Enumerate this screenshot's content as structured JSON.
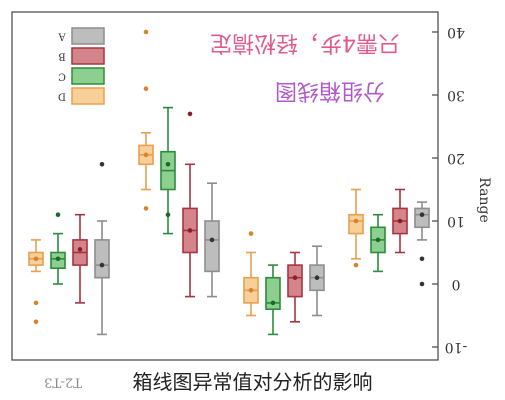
{
  "chart_data": {
    "type": "box",
    "ylabel": "Range",
    "ylim": [
      -11,
      41
    ],
    "yticks": [
      -10,
      0,
      10,
      20,
      30,
      40
    ],
    "grid": false,
    "legend_position": "top-left",
    "categories": [
      "T2-T3",
      "",
      "",
      ""
    ],
    "series": [
      {
        "name": "A",
        "color": "#8e8e8e",
        "fill": "#bdbdbd",
        "mark": "#333333"
      },
      {
        "name": "B",
        "color": "#a8343f",
        "fill": "#d4858c",
        "mark": "#8a1f2a"
      },
      {
        "name": "C",
        "color": "#2e8b3c",
        "fill": "#8ccf8f",
        "mark": "#1a6b2a"
      },
      {
        "name": "D",
        "color": "#e8a050",
        "fill": "#f7cf98",
        "mark": "#d9822b"
      }
    ],
    "boxes": [
      {
        "group": 0,
        "series": "D",
        "whisker_low": 2,
        "q1": 3,
        "median": 4,
        "q3": 5,
        "whisker_high": 7,
        "mean": 4,
        "outliers": [
          -3,
          -6
        ]
      },
      {
        "group": 0,
        "series": "C",
        "whisker_low": 0,
        "q1": 2.5,
        "median": 4,
        "q3": 5,
        "whisker_high": 8,
        "mean": 4,
        "outliers": [
          11
        ]
      },
      {
        "group": 0,
        "series": "B",
        "whisker_low": -3,
        "q1": 3,
        "median": 5,
        "q3": 7,
        "whisker_high": 11,
        "mean": 5.5,
        "outliers": []
      },
      {
        "group": 0,
        "series": "A",
        "whisker_low": -8,
        "q1": 1,
        "median": 3,
        "q3": 7,
        "whisker_high": 10,
        "mean": 3,
        "outliers": [
          19
        ]
      },
      {
        "group": 1,
        "series": "D",
        "whisker_low": 15,
        "q1": 19,
        "median": 20.5,
        "q3": 22,
        "whisker_high": 24,
        "mean": 20.5,
        "outliers": [
          12,
          31,
          40
        ]
      },
      {
        "group": 1,
        "series": "C",
        "whisker_low": 8,
        "q1": 15,
        "median": 18,
        "q3": 21,
        "whisker_high": 28,
        "mean": 19,
        "outliers": [
          11
        ]
      },
      {
        "group": 1,
        "series": "B",
        "whisker_low": -2,
        "q1": 5,
        "median": 8.5,
        "q3": 12,
        "whisker_high": 19,
        "mean": 8.5,
        "outliers": [
          27
        ]
      },
      {
        "group": 1,
        "series": "A",
        "whisker_low": -2,
        "q1": 2,
        "median": 7,
        "q3": 10,
        "whisker_high": 16,
        "mean": 7,
        "outliers": []
      },
      {
        "group": 2,
        "series": "D",
        "whisker_low": -5,
        "q1": -3,
        "median": -1,
        "q3": 1,
        "whisker_high": 5,
        "mean": -1,
        "outliers": [
          8
        ]
      },
      {
        "group": 2,
        "series": "C",
        "whisker_low": -8,
        "q1": -4,
        "median": -3,
        "q3": 1,
        "whisker_high": 3,
        "mean": -3,
        "outliers": []
      },
      {
        "group": 2,
        "series": "B",
        "whisker_low": -6,
        "q1": -2,
        "median": 1,
        "q3": 3,
        "whisker_high": 5,
        "mean": 1,
        "outliers": []
      },
      {
        "group": 2,
        "series": "A",
        "whisker_low": -5,
        "q1": -1,
        "median": 1,
        "q3": 3,
        "whisker_high": 6,
        "mean": 1,
        "outliers": []
      },
      {
        "group": 3,
        "series": "D",
        "whisker_low": 4,
        "q1": 8,
        "median": 10,
        "q3": 11,
        "whisker_high": 15,
        "mean": 10,
        "outliers": [
          3
        ]
      },
      {
        "group": 3,
        "series": "C",
        "whisker_low": 2,
        "q1": 5,
        "median": 7,
        "q3": 9,
        "whisker_high": 11,
        "mean": 7,
        "outliers": []
      },
      {
        "group": 3,
        "series": "B",
        "whisker_low": 5,
        "q1": 8,
        "median": 10,
        "q3": 12,
        "whisker_high": 15,
        "mean": 10,
        "outliers": []
      },
      {
        "group": 3,
        "series": "A",
        "whisker_low": 7,
        "q1": 9,
        "median": 11,
        "q3": 12,
        "whisker_high": 13,
        "mean": 11,
        "outliers": [
          4,
          0
        ]
      }
    ]
  },
  "watermark": {
    "line1": "只需4步，轻松搞定",
    "line2": "分组箱线图"
  },
  "caption": "箱线图异常值对分析的影响"
}
